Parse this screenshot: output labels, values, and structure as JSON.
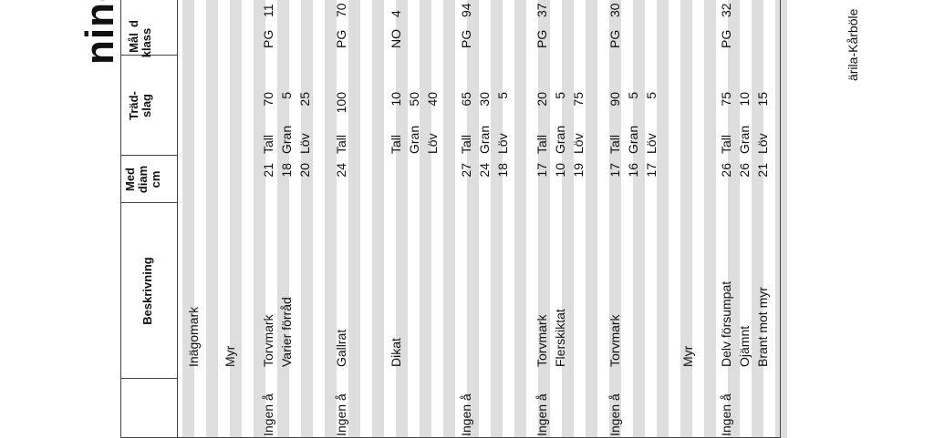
{
  "title": "ning",
  "headers": {
    "col0": "d",
    "malklass": "Mål\nklass",
    "tradslag": "Träd-\nslag",
    "med_diam": "Med\ndiam\ncm",
    "beskrivning": "Beskrivning"
  },
  "rows": [
    {
      "c0": "",
      "malklass": "",
      "species": [],
      "pct": [],
      "diam": [],
      "desc": [
        "Inägomark"
      ],
      "right": ""
    },
    {
      "c0": "",
      "malklass": "",
      "species": [],
      "pct": [],
      "diam": [],
      "desc": [
        "Myr"
      ],
      "right": ""
    },
    {
      "c0": "11",
      "malklass": "PG",
      "species": [
        "Tall",
        "Gran",
        "Löv"
      ],
      "pct": [
        "70",
        "5",
        "25"
      ],
      "diam": [
        "21",
        "18",
        "20"
      ],
      "desc": [
        "Torvmark",
        "Varier förråd"
      ],
      "right": "Ingen å"
    },
    {
      "c0": "70",
      "malklass": "PG",
      "species": [
        "Tall"
      ],
      "pct": [
        "100"
      ],
      "diam": [
        "24"
      ],
      "desc": [
        "Gallrat"
      ],
      "right": "Ingen å"
    },
    {
      "c0": "4",
      "malklass": "NO",
      "species": [
        "Tall",
        "Gran",
        "Löv"
      ],
      "pct": [
        "10",
        "50",
        "40"
      ],
      "diam": [],
      "desc": [
        "Dikat"
      ],
      "right": ""
    },
    {
      "c0": "94",
      "malklass": "PG",
      "species": [
        "Tall",
        "Gran",
        "Löv"
      ],
      "pct": [
        "65",
        "30",
        "5"
      ],
      "diam": [
        "27",
        "24",
        "18"
      ],
      "desc": [],
      "right": "Ingen å"
    },
    {
      "c0": "37",
      "malklass": "PG",
      "species": [
        "Tall",
        "Gran",
        "Löv"
      ],
      "pct": [
        "20",
        "5",
        "75"
      ],
      "diam": [
        "17",
        "10",
        "19"
      ],
      "desc": [
        "Torvmark",
        "Flerskiktat"
      ],
      "right": "Ingen å"
    },
    {
      "c0": "30",
      "malklass": "PG",
      "species": [
        "Tall",
        "Gran",
        "Löv"
      ],
      "pct": [
        "90",
        "5",
        "5"
      ],
      "diam": [
        "17",
        "16",
        "17"
      ],
      "desc": [
        "Torvmark"
      ],
      "right": "Ingen å"
    },
    {
      "c0": "",
      "malklass": "",
      "species": [],
      "pct": [],
      "diam": [],
      "desc": [
        "Myr"
      ],
      "right": ""
    },
    {
      "c0": "32",
      "malklass": "PG",
      "species": [
        "Tall",
        "Gran",
        "Löv"
      ],
      "pct": [
        "75",
        "10",
        "15"
      ],
      "diam": [
        "26",
        "26",
        "21"
      ],
      "desc": [
        "Delv försumpat",
        "Ojämnt",
        "Brant mot myr"
      ],
      "right": "Ingen å"
    }
  ],
  "footer": "ärila-Kårböle"
}
